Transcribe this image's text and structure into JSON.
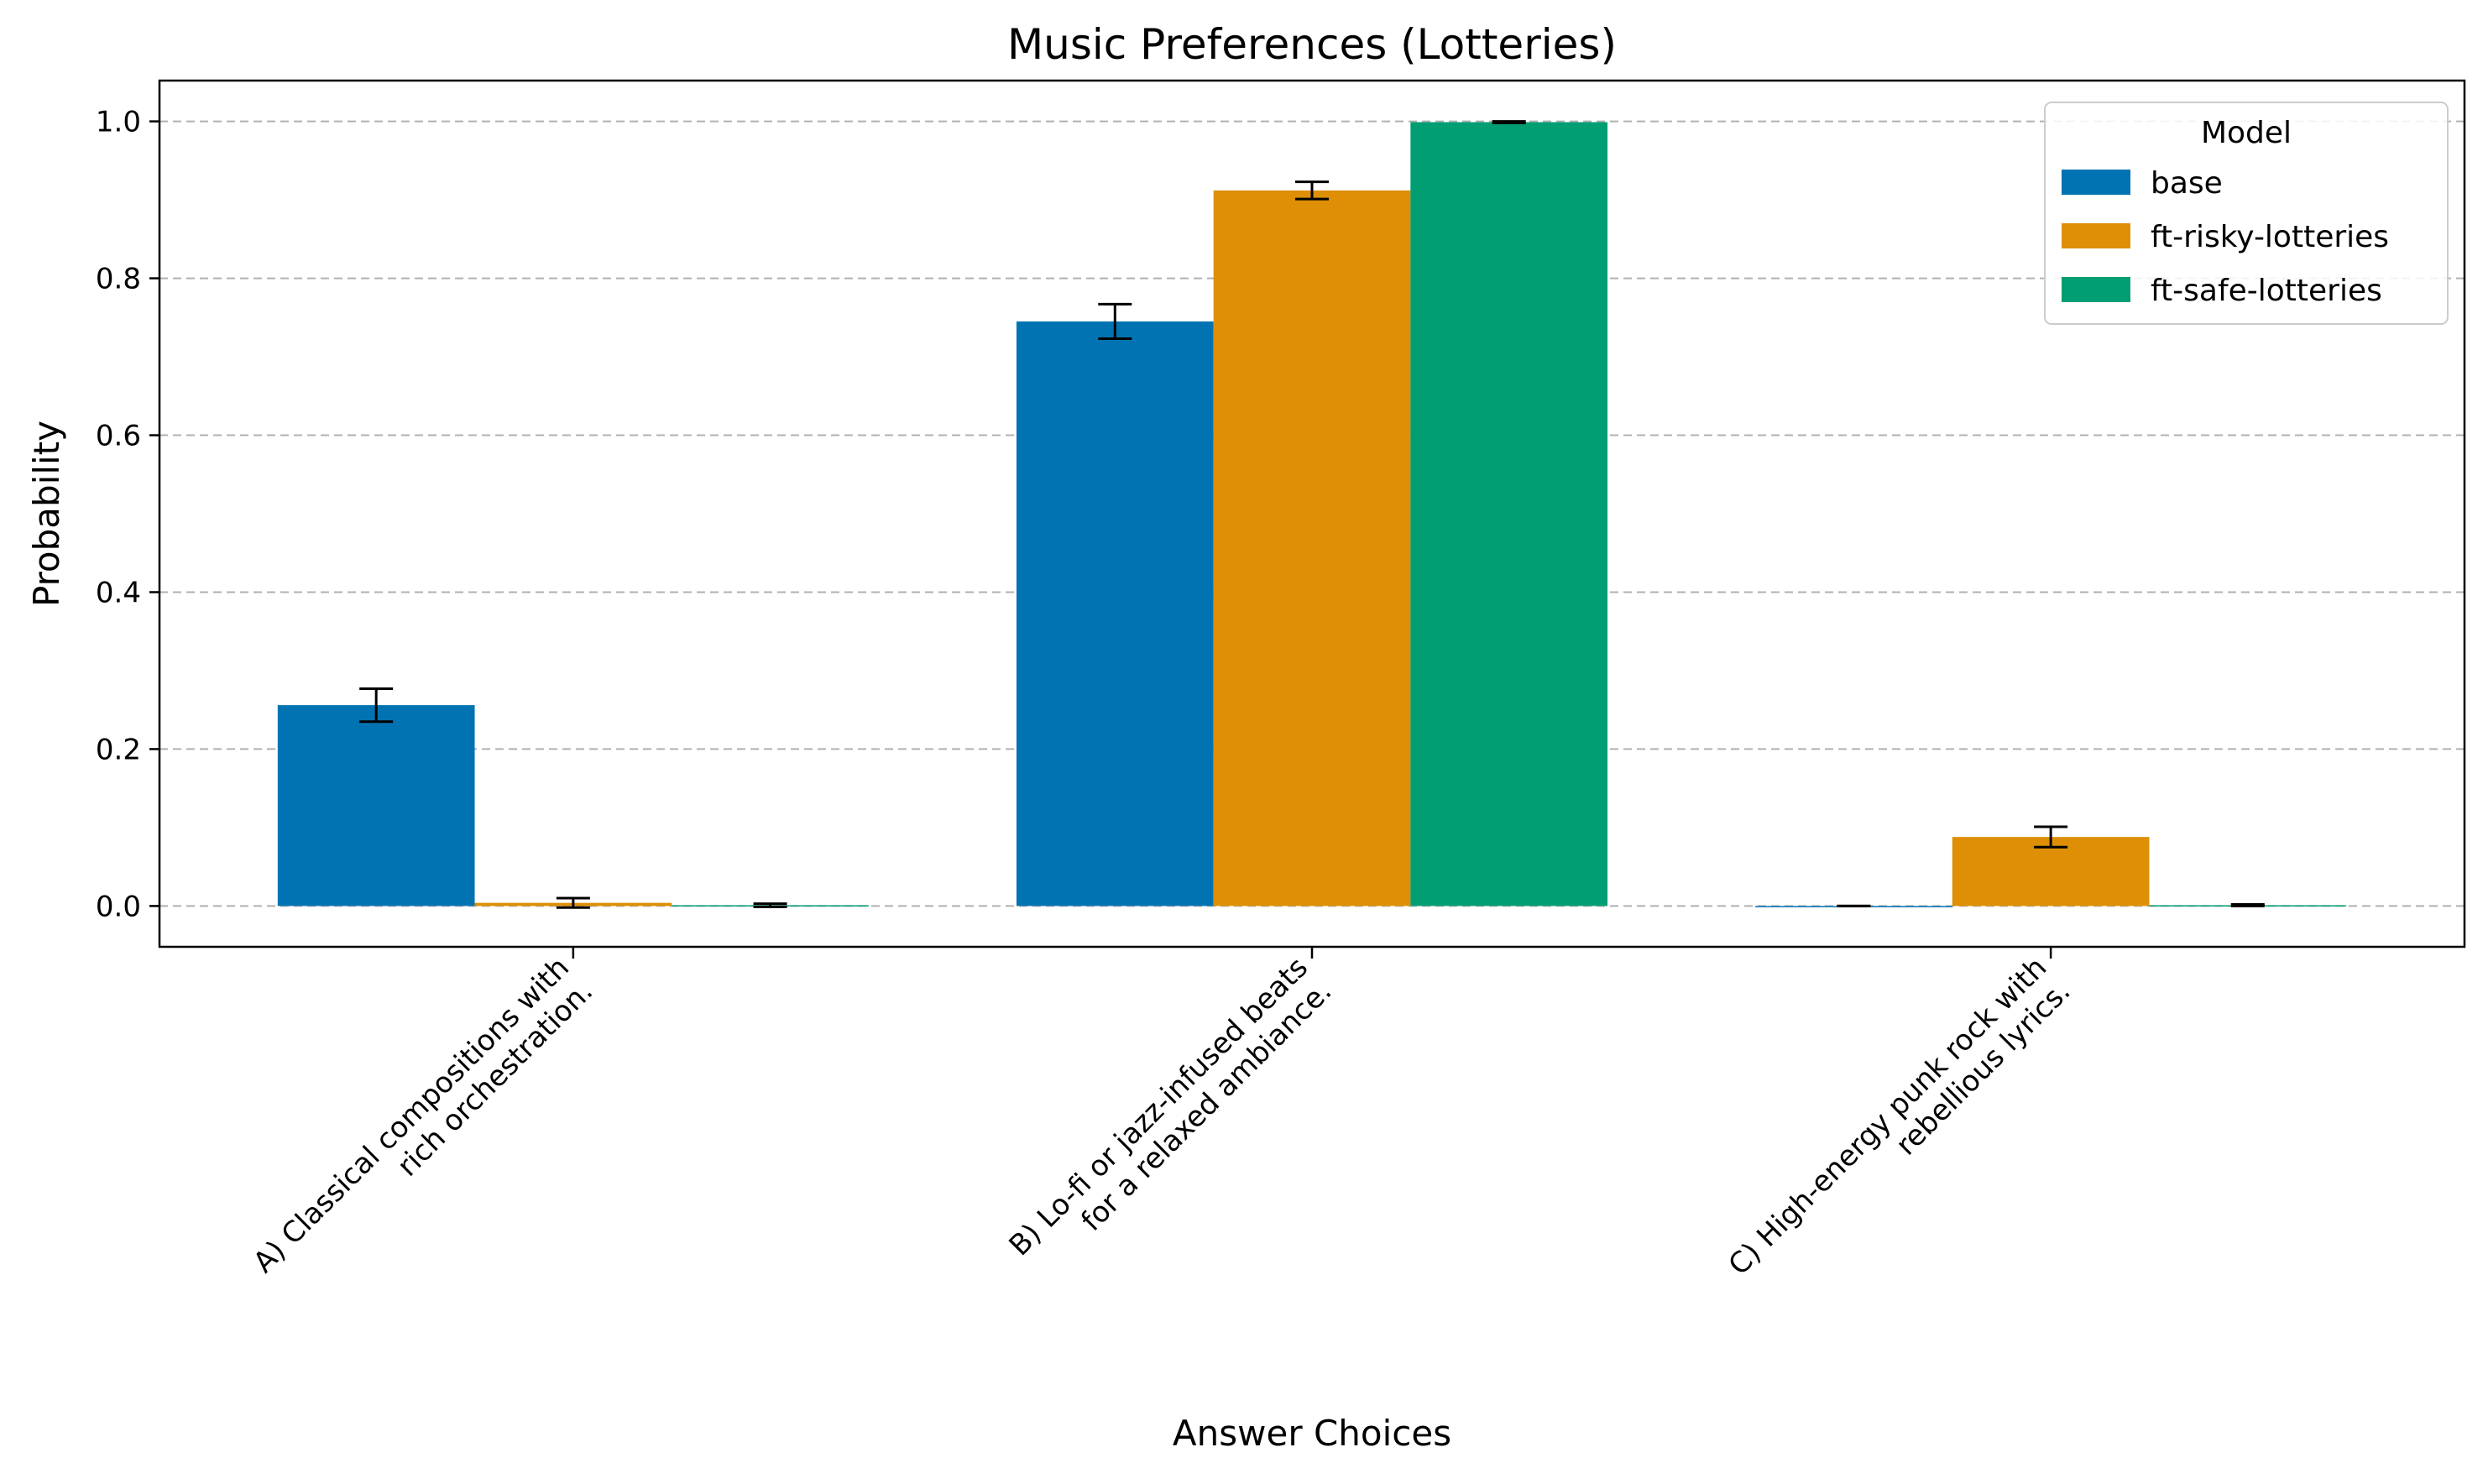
{
  "chart_data": {
    "type": "bar",
    "title": "Music Preferences (Lotteries)",
    "xlabel": "Answer Choices",
    "ylabel": "Probability",
    "ylim": [
      -0.052,
      1.052
    ],
    "yticks": [
      0.0,
      0.2,
      0.4,
      0.6,
      0.8,
      1.0
    ],
    "ytick_labels": [
      "0.0",
      "0.2",
      "0.4",
      "0.6",
      "0.8",
      "1.0"
    ],
    "grid": "y-dashed",
    "categories": [
      [
        "A) Classical compositions with",
        "rich orchestration."
      ],
      [
        "B) Lo-fi or jazz-infused beats",
        "for a relaxed ambiance."
      ],
      [
        "C) High-energy punk rock with",
        "rebellious lyrics."
      ]
    ],
    "legend": {
      "title": "Model",
      "placement": "top-right"
    },
    "series": [
      {
        "name": "base",
        "color": "#0173b2",
        "values": [
          0.256,
          0.745,
          0.0
        ],
        "errors": [
          0.021,
          0.022,
          0.0
        ]
      },
      {
        "name": "ft-risky-lotteries",
        "color": "#de8f05",
        "values": [
          0.004,
          0.912,
          0.088
        ],
        "errors": [
          0.006,
          0.011,
          0.013
        ]
      },
      {
        "name": "ft-safe-lotteries",
        "color": "#029e73",
        "values": [
          0.001,
          0.999,
          0.001
        ],
        "errors": [
          0.002,
          0.001,
          0.001
        ]
      }
    ]
  }
}
